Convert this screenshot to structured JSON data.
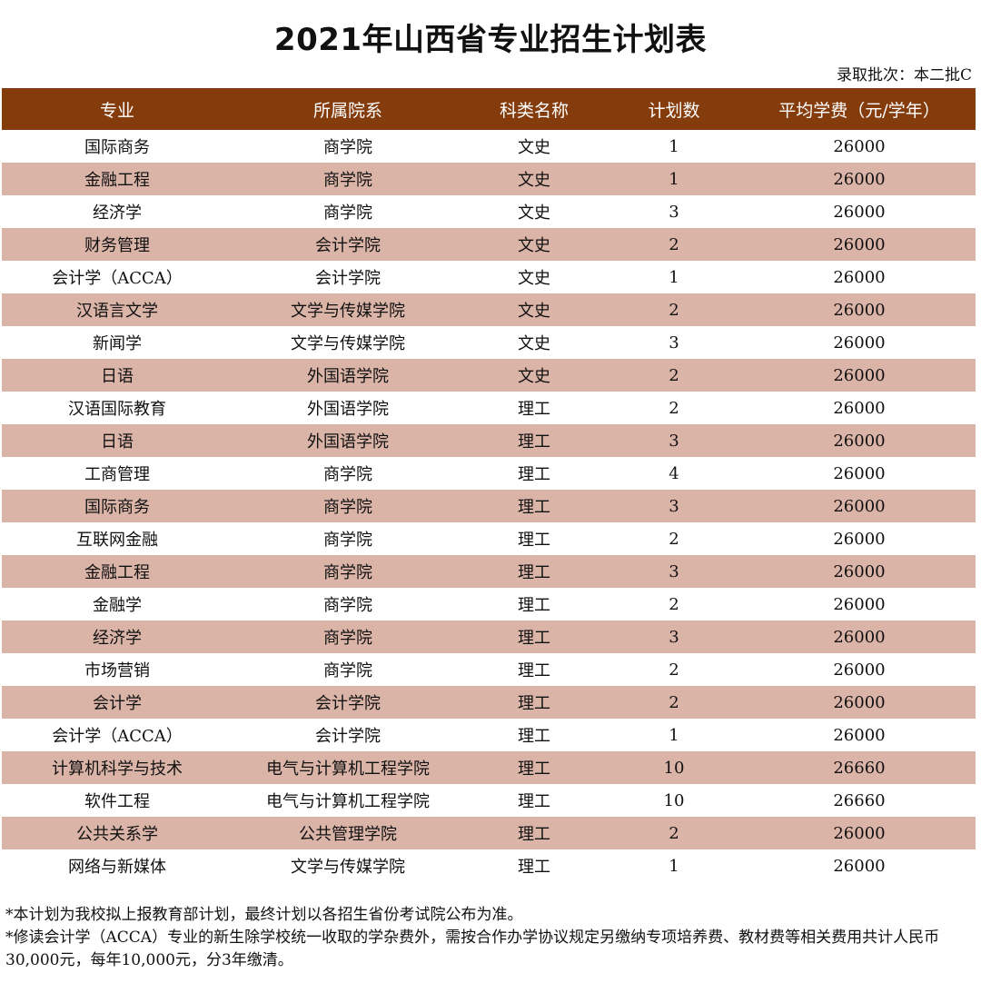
{
  "title": "2021年山西省专业招生计划表",
  "batch": "录取批次：本二批C",
  "table": {
    "headers": [
      "专业",
      "所属院系",
      "科类名称",
      "计划数",
      "平均学费（元/学年）"
    ],
    "rows": [
      [
        "国际商务",
        "商学院",
        "文史",
        "1",
        "26000"
      ],
      [
        "金融工程",
        "商学院",
        "文史",
        "1",
        "26000"
      ],
      [
        "经济学",
        "商学院",
        "文史",
        "3",
        "26000"
      ],
      [
        "财务管理",
        "会计学院",
        "文史",
        "2",
        "26000"
      ],
      [
        "会计学（ACCA）",
        "会计学院",
        "文史",
        "1",
        "26000"
      ],
      [
        "汉语言文学",
        "文学与传媒学院",
        "文史",
        "2",
        "26000"
      ],
      [
        "新闻学",
        "文学与传媒学院",
        "文史",
        "3",
        "26000"
      ],
      [
        "日语",
        "外国语学院",
        "文史",
        "2",
        "26000"
      ],
      [
        "汉语国际教育",
        "外国语学院",
        "理工",
        "2",
        "26000"
      ],
      [
        "日语",
        "外国语学院",
        "理工",
        "3",
        "26000"
      ],
      [
        "工商管理",
        "商学院",
        "理工",
        "4",
        "26000"
      ],
      [
        "国际商务",
        "商学院",
        "理工",
        "3",
        "26000"
      ],
      [
        "互联网金融",
        "商学院",
        "理工",
        "2",
        "26000"
      ],
      [
        "金融工程",
        "商学院",
        "理工",
        "3",
        "26000"
      ],
      [
        "金融学",
        "商学院",
        "理工",
        "2",
        "26000"
      ],
      [
        "经济学",
        "商学院",
        "理工",
        "3",
        "26000"
      ],
      [
        "市场营销",
        "商学院",
        "理工",
        "2",
        "26000"
      ],
      [
        "会计学",
        "会计学院",
        "理工",
        "2",
        "26000"
      ],
      [
        "会计学（ACCA）",
        "会计学院",
        "理工",
        "1",
        "26000"
      ],
      [
        "计算机科学与技术",
        "电气与计算机工程学院",
        "理工",
        "10",
        "26660"
      ],
      [
        "软件工程",
        "电气与计算机工程学院",
        "理工",
        "10",
        "26660"
      ],
      [
        "公共关系学",
        "公共管理学院",
        "理工",
        "2",
        "26000"
      ],
      [
        "网络与新媒体",
        "文学与传媒学院",
        "理工",
        "1",
        "26000"
      ]
    ]
  },
  "notes": [
    "*本计划为我校拟上报教育部计划，最终计划以各招生省份考试院公布为准。",
    "*修读会计学（ACCA）专业的新生除学校统一收取的学杂费外，需按合作办学协议规定另缴纳专项培养费、教材费等相关费用共计人民币30,000元，每年10,000元，分3年缴清。"
  ],
  "colors": {
    "header_bg": "#843c0c",
    "header_text": "#ffffff",
    "stripe": "#dbb4a8"
  }
}
